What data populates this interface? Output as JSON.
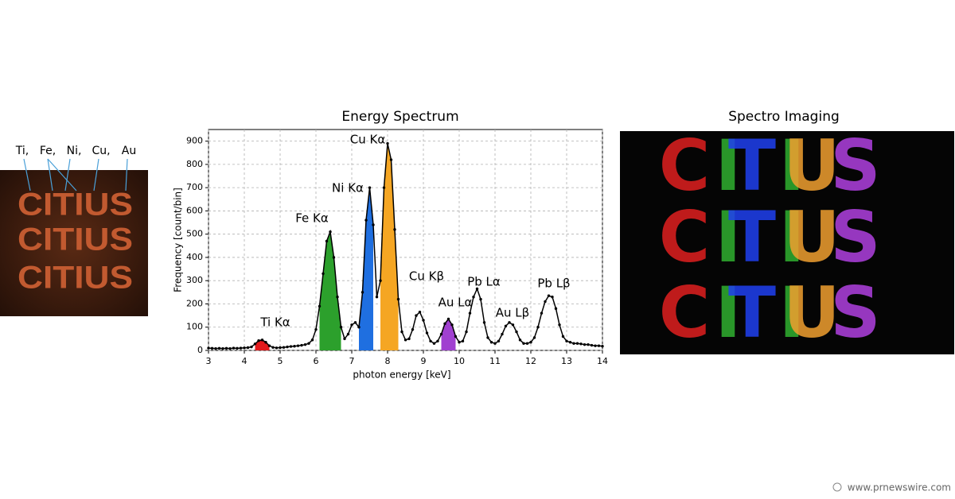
{
  "chart_data": {
    "type": "line",
    "title": "Energy Spectrum",
    "xlabel": "photon energy [keV]",
    "ylabel": "Frequency [count/bin]",
    "xlim": [
      3,
      14
    ],
    "xticks": [
      3,
      4,
      5,
      6,
      7,
      8,
      9,
      10,
      11,
      12,
      13,
      14
    ],
    "ylim": [
      0,
      950
    ],
    "yticks": [
      0,
      100,
      200,
      300,
      400,
      500,
      600,
      700,
      800,
      900
    ],
    "grid": true,
    "x": [
      3.0,
      3.1,
      3.2,
      3.3,
      3.4,
      3.5,
      3.6,
      3.7,
      3.8,
      3.9,
      4.0,
      4.1,
      4.2,
      4.3,
      4.4,
      4.5,
      4.6,
      4.7,
      4.8,
      4.9,
      5.0,
      5.1,
      5.2,
      5.3,
      5.4,
      5.5,
      5.6,
      5.7,
      5.8,
      5.9,
      6.0,
      6.1,
      6.2,
      6.3,
      6.4,
      6.5,
      6.6,
      6.7,
      6.8,
      6.9,
      7.0,
      7.1,
      7.2,
      7.3,
      7.4,
      7.5,
      7.6,
      7.7,
      7.8,
      7.9,
      8.0,
      8.1,
      8.2,
      8.3,
      8.4,
      8.5,
      8.6,
      8.7,
      8.8,
      8.9,
      9.0,
      9.1,
      9.2,
      9.3,
      9.4,
      9.5,
      9.6,
      9.7,
      9.8,
      9.9,
      10.0,
      10.1,
      10.2,
      10.3,
      10.4,
      10.5,
      10.6,
      10.7,
      10.8,
      10.9,
      11.0,
      11.1,
      11.2,
      11.3,
      11.4,
      11.5,
      11.6,
      11.7,
      11.8,
      11.9,
      12.0,
      12.1,
      12.2,
      12.3,
      12.4,
      12.5,
      12.6,
      12.7,
      12.8,
      12.9,
      13.0,
      13.1,
      13.2,
      13.3,
      13.4,
      13.5,
      13.6,
      13.7,
      13.8,
      13.9,
      14.0
    ],
    "series": [
      {
        "color": "#000000",
        "values": [
          10,
          9,
          8,
          9,
          8,
          9,
          8,
          10,
          9,
          10,
          11,
          12,
          15,
          28,
          42,
          45,
          35,
          20,
          13,
          11,
          12,
          13,
          15,
          17,
          18,
          20,
          22,
          25,
          30,
          45,
          90,
          190,
          330,
          470,
          510,
          400,
          230,
          100,
          50,
          70,
          110,
          120,
          100,
          250,
          560,
          700,
          540,
          230,
          300,
          700,
          890,
          820,
          520,
          220,
          80,
          45,
          50,
          90,
          150,
          165,
          130,
          75,
          40,
          30,
          40,
          70,
          115,
          135,
          110,
          60,
          35,
          40,
          80,
          160,
          230,
          265,
          220,
          120,
          55,
          35,
          30,
          40,
          70,
          105,
          120,
          110,
          80,
          45,
          30,
          30,
          35,
          55,
          100,
          160,
          210,
          235,
          230,
          180,
          110,
          60,
          40,
          35,
          30,
          30,
          28,
          25,
          25,
          22,
          20,
          20,
          18
        ]
      }
    ],
    "highlights": [
      {
        "color": "#e31a1c",
        "range": [
          4.3,
          4.7
        ]
      },
      {
        "color": "#2ca02c",
        "range": [
          6.1,
          6.7
        ]
      },
      {
        "color": "#1f6fe0",
        "range": [
          7.2,
          7.6
        ]
      },
      {
        "color": "#f5a623",
        "range": [
          7.8,
          8.3
        ]
      },
      {
        "color": "#a040d0",
        "range": [
          9.5,
          9.9
        ]
      }
    ],
    "annotations": [
      "Ti Kα",
      "Fe Kα",
      "Ni Kα",
      "Cu Kα",
      "Cu Kβ",
      "Au Lα",
      "Pb Lα",
      "Au Lβ",
      "Pb Lβ"
    ]
  },
  "photo": {
    "labels": [
      "Ti,",
      "Fe,",
      "Ni,",
      "Cu,",
      "Au"
    ],
    "text": "CITIUS"
  },
  "imaging": {
    "title": "Spectro Imaging",
    "letters": [
      {
        "char": "C",
        "color": "#e02020"
      },
      {
        "char": "I",
        "color": "#30b030"
      },
      {
        "char": "T",
        "color": "#2040f0"
      },
      {
        "char": "I",
        "color": "#30b030"
      },
      {
        "char": "U",
        "color": "#f0a030"
      },
      {
        "char": "S",
        "color": "#b040e0"
      }
    ]
  },
  "watermark": "www.prnewswire.com"
}
